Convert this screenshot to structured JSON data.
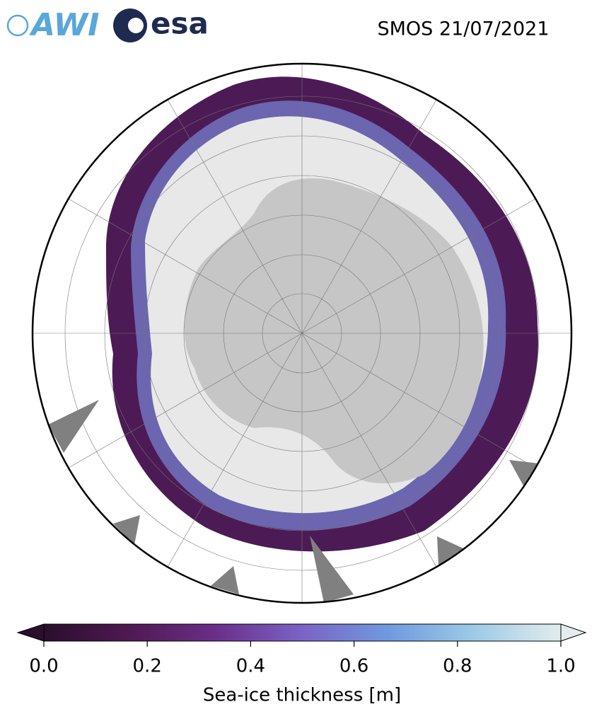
{
  "header": {
    "logos": [
      "AWI",
      "esa"
    ],
    "title": "SMOS 21/07/2021"
  },
  "colorbar": {
    "label": "Sea-ice thickness [m]",
    "lim": [
      0,
      1
    ],
    "ticks": [
      {
        "value": 0,
        "label": "0.0"
      },
      {
        "value": 0.2,
        "label": "0.2"
      },
      {
        "value": 0.4,
        "label": "0.4"
      },
      {
        "value": 0.6,
        "label": "0.6"
      },
      {
        "value": 0.8,
        "label": "0.8"
      },
      {
        "value": 1,
        "label": "1.0"
      }
    ],
    "colors": [
      "#2a0e2c",
      "#4e1a52",
      "#6a2f8a",
      "#7b63c6",
      "#6f9ae0",
      "#9dcbe6",
      "#e3ecee"
    ],
    "extend": "both"
  }
}
